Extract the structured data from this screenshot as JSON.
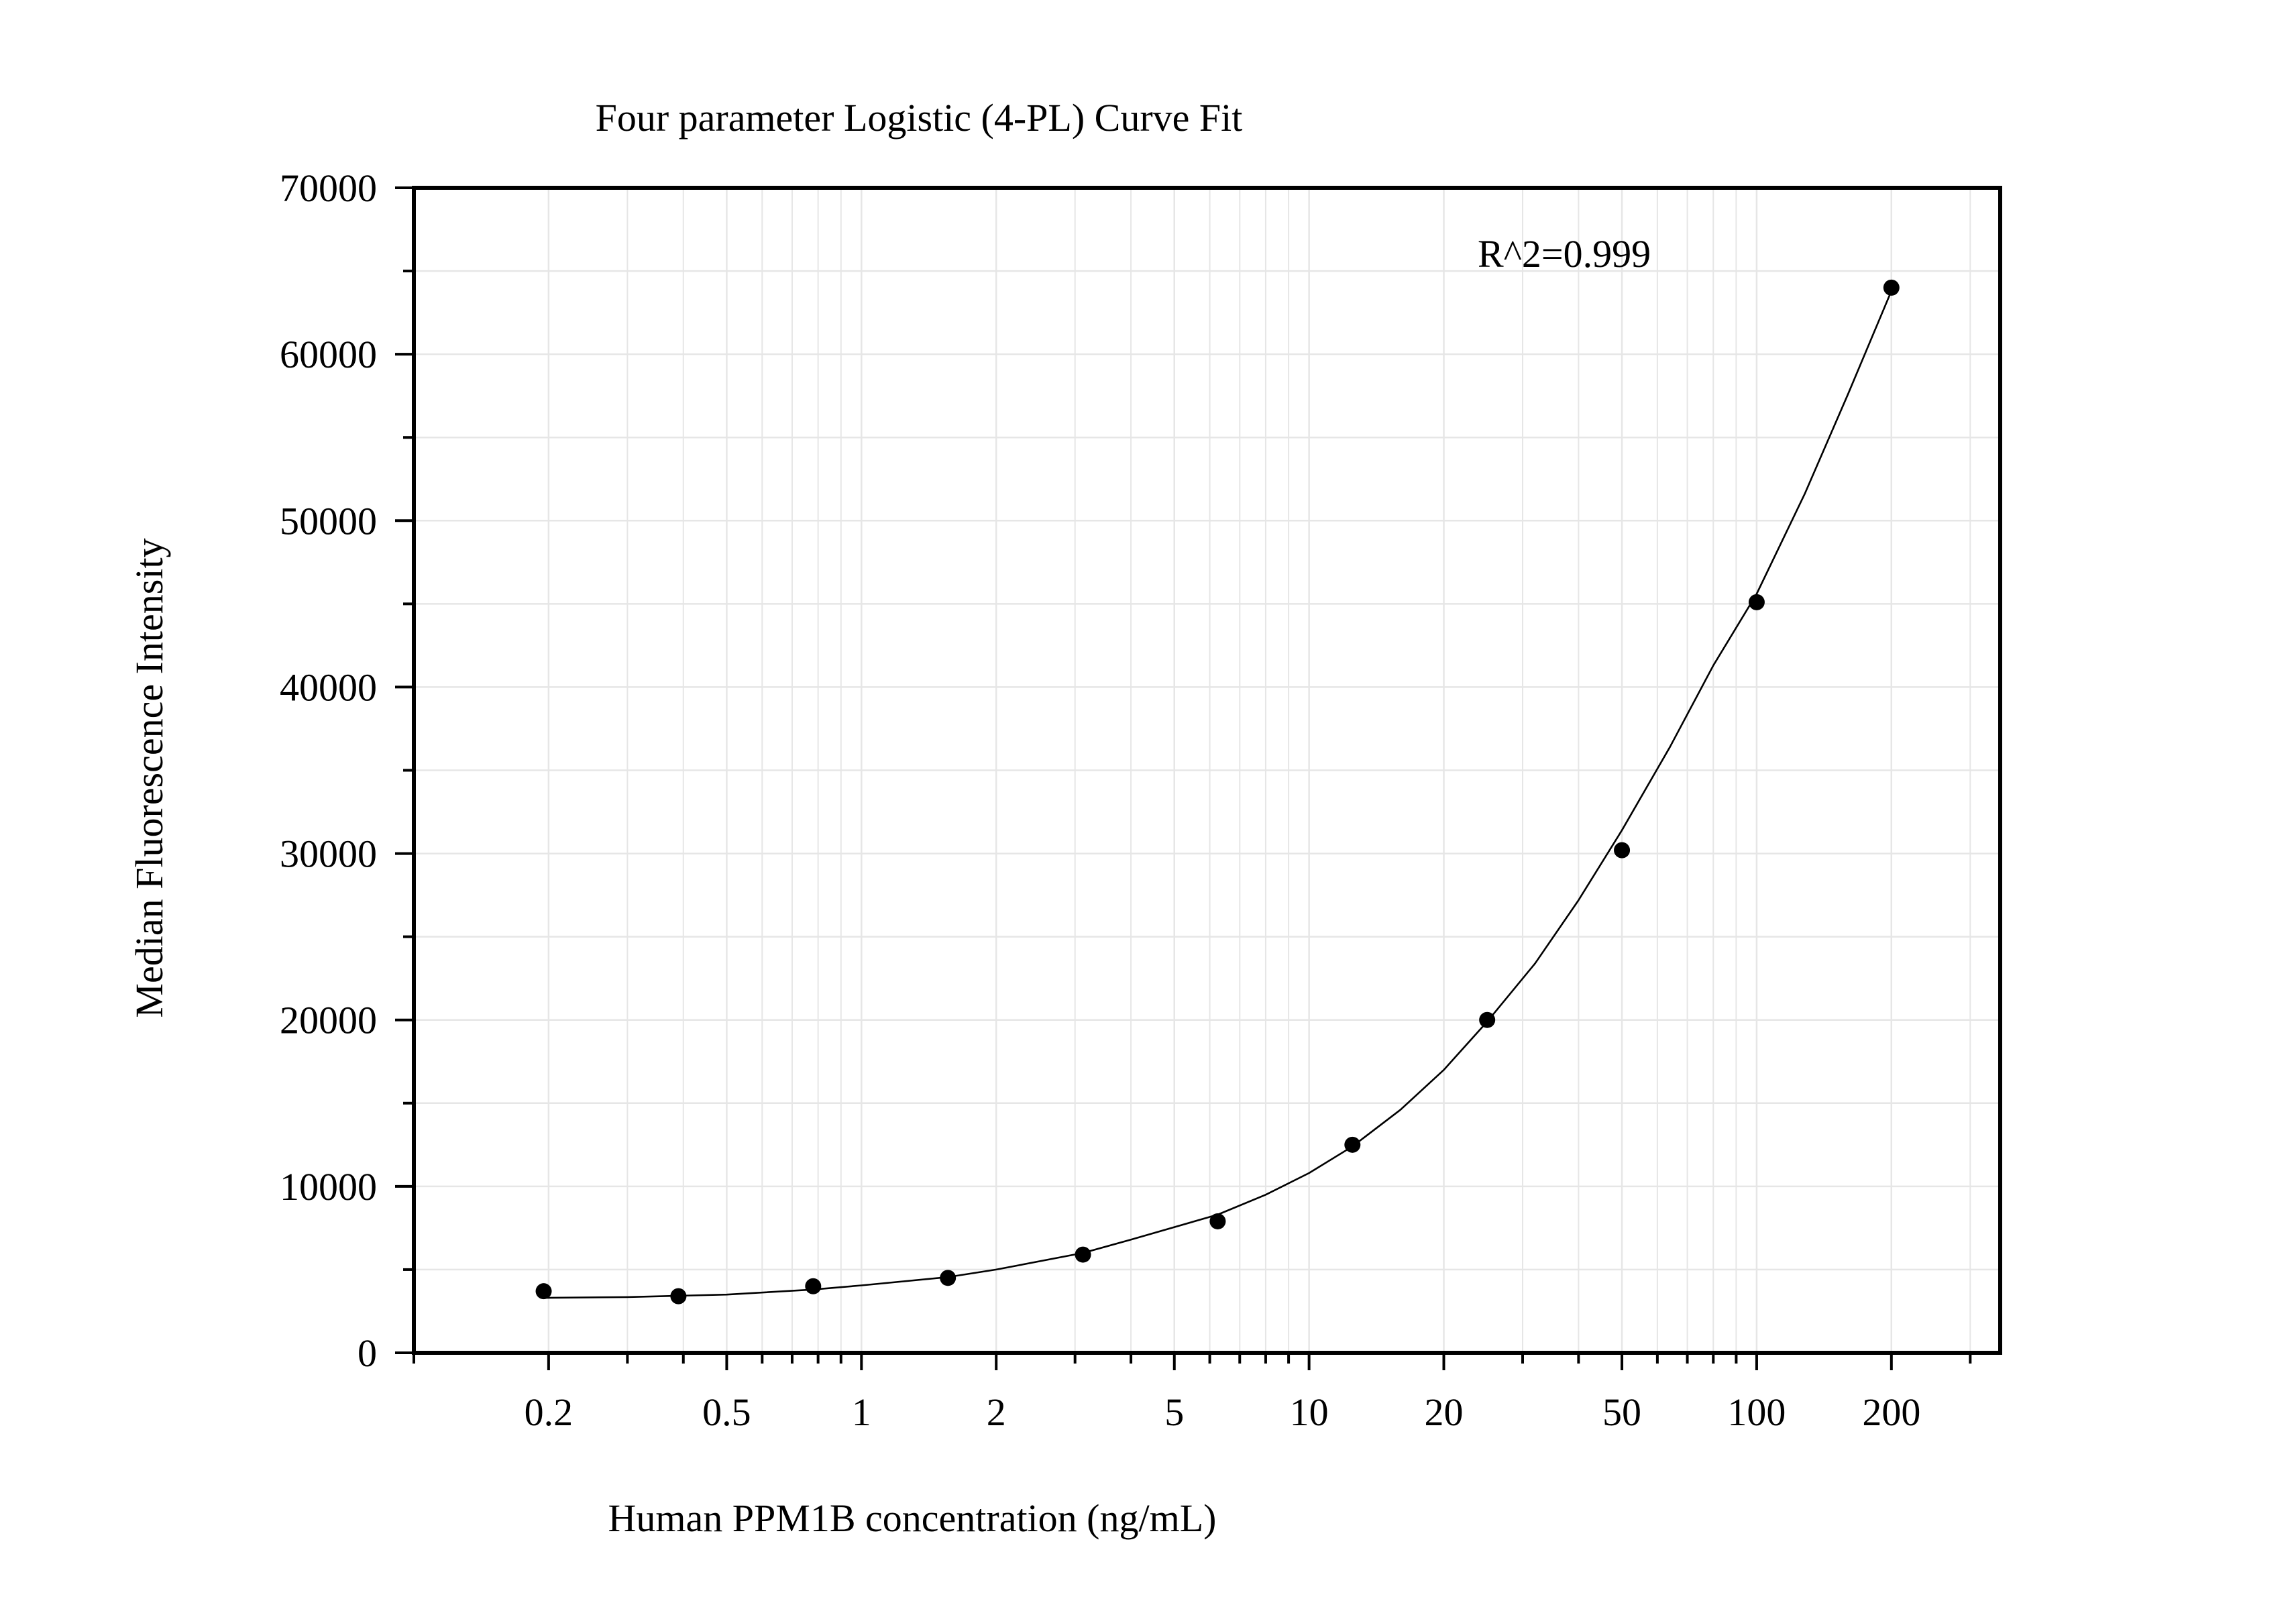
{
  "chart_data": {
    "type": "scatter",
    "title": "Four parameter Logistic (4-PL) Curve Fit",
    "xlabel": "Human PPM1B concentration (ng/mL)",
    "ylabel": "Median Fluorescence Intensity",
    "x_scale": "log",
    "xlim": [
      0.1,
      350
    ],
    "ylim": [
      0,
      70000
    ],
    "x_ticks": [
      0.2,
      0.5,
      1,
      2,
      5,
      10,
      20,
      50,
      100,
      200
    ],
    "x_tick_labels": [
      "0.2",
      "0.5",
      "1",
      "2",
      "5",
      "10",
      "20",
      "50",
      "100",
      "200"
    ],
    "y_ticks": [
      0,
      10000,
      20000,
      30000,
      40000,
      50000,
      60000,
      70000
    ],
    "y_tick_labels": [
      "0",
      "10000",
      "20000",
      "30000",
      "40000",
      "50000",
      "60000",
      "70000"
    ],
    "grid": true,
    "annotation": "R^2=0.999",
    "series": [
      {
        "type": "scatter",
        "x": [
          0.195,
          0.39,
          0.78,
          1.56,
          3.125,
          6.25,
          12.5,
          25,
          50,
          100,
          200
        ],
        "y": [
          3700,
          3400,
          4000,
          4500,
          5900,
          7900,
          12500,
          20000,
          30200,
          45100,
          64000
        ],
        "color": "#000000"
      },
      {
        "type": "line",
        "fit": "4-PL",
        "x": [
          0.195,
          0.3,
          0.5,
          0.78,
          1,
          1.56,
          2,
          3.125,
          4,
          6.25,
          8,
          10,
          12.5,
          16,
          20,
          25,
          32,
          40,
          50,
          64,
          80,
          100,
          128,
          160,
          200
        ],
        "y": [
          3300,
          3350,
          3500,
          3800,
          4050,
          4550,
          5000,
          6000,
          6800,
          8300,
          9500,
          10800,
          12400,
          14600,
          17000,
          19900,
          23400,
          27200,
          31400,
          36400,
          41300,
          45600,
          51600,
          57600,
          63800
        ],
        "color": "#000000"
      }
    ],
    "colors": {
      "background": "#ffffff",
      "axis": "#000000",
      "grid": "#e6e6e6",
      "marker": "#000000",
      "curve": "#000000"
    }
  }
}
